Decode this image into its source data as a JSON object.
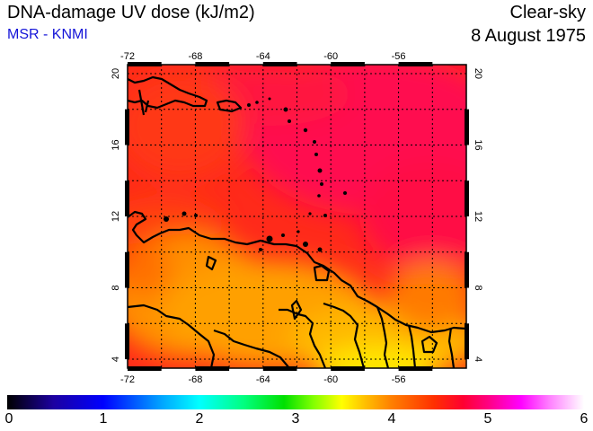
{
  "header": {
    "title": "DNA-damage UV dose (kJ/m2)",
    "source": "MSR - KNMI",
    "condition": "Clear-sky",
    "date": "8 August 1975"
  },
  "map": {
    "lon_ticks": [
      "-72",
      "-68",
      "-64",
      "-60",
      "-56"
    ],
    "lat_ticks": [
      "4",
      "8",
      "12",
      "16",
      "20"
    ],
    "lon_range": [
      -72,
      -52
    ],
    "lat_range": [
      3.5,
      20.5
    ]
  },
  "colorbar": {
    "labels": [
      "0",
      "1",
      "2",
      "3",
      "4",
      "5",
      "6"
    ],
    "range": [
      0,
      6
    ]
  },
  "colors": {
    "high": "#ff0a50",
    "mid": "#ff2a1a",
    "low": "#ff8800",
    "lowest": "#ffe000",
    "coast": "#000000"
  }
}
